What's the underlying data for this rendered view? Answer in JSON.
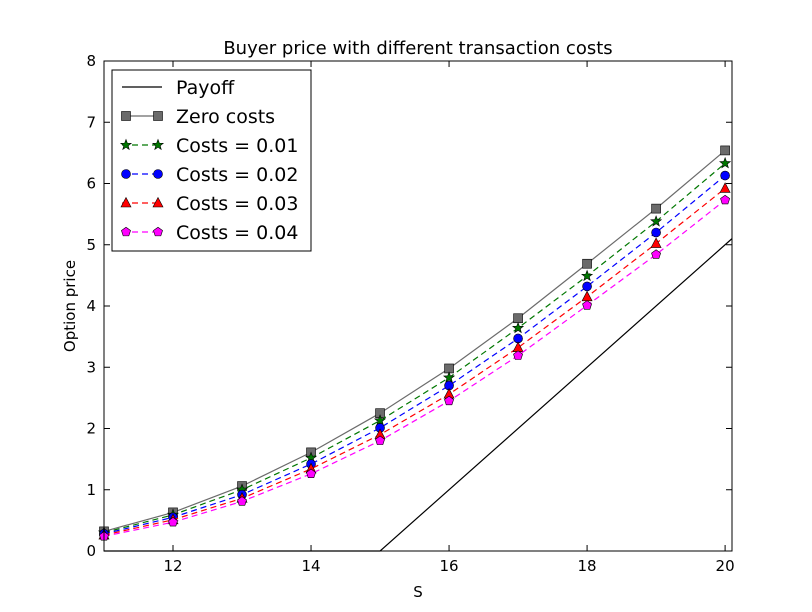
{
  "chart_data": {
    "type": "line",
    "title": "Buyer price with different transaction costs",
    "xlabel": "S",
    "ylabel": "Option price",
    "xlim": [
      11,
      20.1
    ],
    "ylim": [
      0,
      8
    ],
    "xticks": [
      12,
      14,
      16,
      18,
      20
    ],
    "yticks": [
      0,
      1,
      2,
      3,
      4,
      5,
      6,
      7,
      8
    ],
    "grid": false,
    "legend_position": "top-left",
    "payoff": {
      "name": "Payoff",
      "color": "#000000",
      "x": [
        11,
        15,
        20.1
      ],
      "values": [
        0,
        0,
        5.1
      ]
    },
    "x": [
      11,
      12,
      13,
      14,
      15,
      16,
      17,
      18,
      19,
      20
    ],
    "series": [
      {
        "name": "Zero costs",
        "color": "#6b6b6b",
        "marker": "square",
        "dashed": false,
        "values": [
          0.32,
          0.63,
          1.06,
          1.61,
          2.25,
          2.98,
          3.8,
          4.69,
          5.59,
          6.54
        ]
      },
      {
        "name": "Costs = 0.01",
        "color": "#007700",
        "marker": "star",
        "dashed": true,
        "values": [
          0.3,
          0.59,
          1.0,
          1.52,
          2.13,
          2.83,
          3.64,
          4.49,
          5.38,
          6.33
        ]
      },
      {
        "name": "Costs = 0.02",
        "color": "#0000ff",
        "marker": "circle",
        "dashed": true,
        "values": [
          0.28,
          0.55,
          0.92,
          1.42,
          2.01,
          2.7,
          3.47,
          4.32,
          5.2,
          6.13
        ]
      },
      {
        "name": "Costs = 0.03",
        "color": "#ff0000",
        "marker": "triangle",
        "dashed": true,
        "values": [
          0.26,
          0.51,
          0.86,
          1.34,
          1.9,
          2.56,
          3.32,
          4.15,
          5.02,
          5.92
        ]
      },
      {
        "name": "Costs = 0.04",
        "color": "#ff00ff",
        "marker": "pentagon",
        "dashed": true,
        "values": [
          0.24,
          0.47,
          0.81,
          1.26,
          1.8,
          2.45,
          3.19,
          4.01,
          4.84,
          5.73
        ]
      }
    ]
  }
}
